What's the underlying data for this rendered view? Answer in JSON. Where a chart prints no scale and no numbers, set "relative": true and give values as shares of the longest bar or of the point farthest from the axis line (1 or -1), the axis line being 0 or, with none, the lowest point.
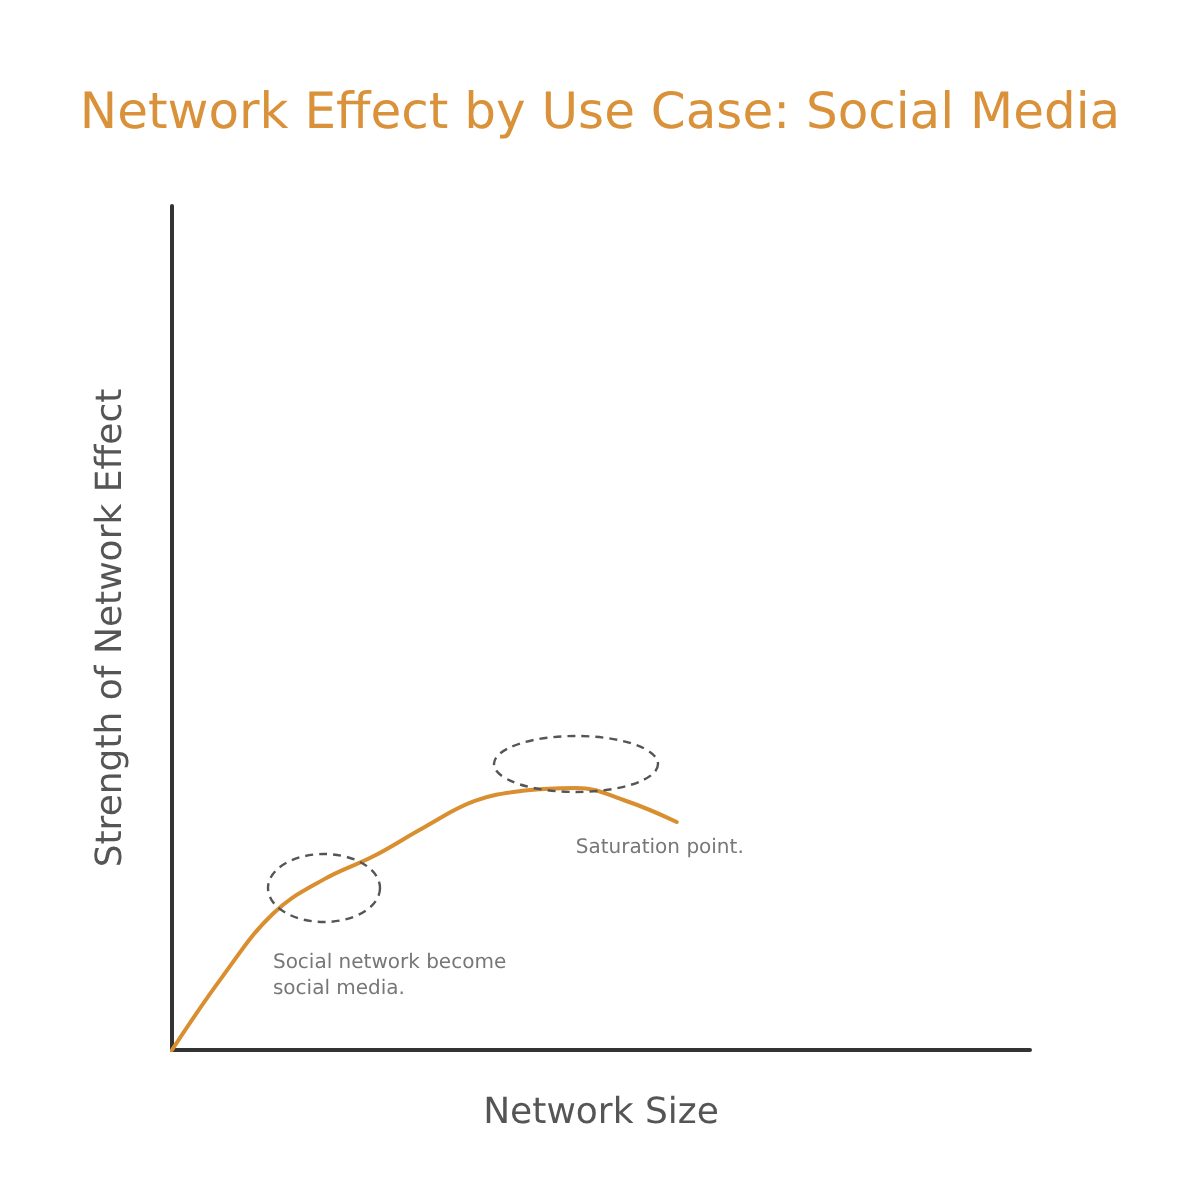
{
  "chart_data": {
    "type": "line",
    "title": "Network Effect by Use Case: Social Media",
    "xlabel": "Network Size",
    "ylabel": "Strength of Network Effect",
    "relative": true,
    "categories": [
      null,
      null,
      null,
      null,
      null,
      null,
      null,
      null,
      null,
      null,
      null,
      null,
      null,
      null,
      null,
      null,
      null,
      null
    ],
    "series": [
      {
        "color": "#d98e2f",
        "values": [
          0,
          0.28,
          0.52,
          0.65,
          0.74,
          0.85,
          0.95,
          0.99,
          1,
          0.95,
          0.87,
          null,
          null,
          null,
          null,
          null,
          null,
          null
        ]
      }
    ],
    "annotations": [
      "Social network become social media.",
      "Saturation point."
    ],
    "marker": "none",
    "line_style": "solid",
    "grid": false
  }
}
